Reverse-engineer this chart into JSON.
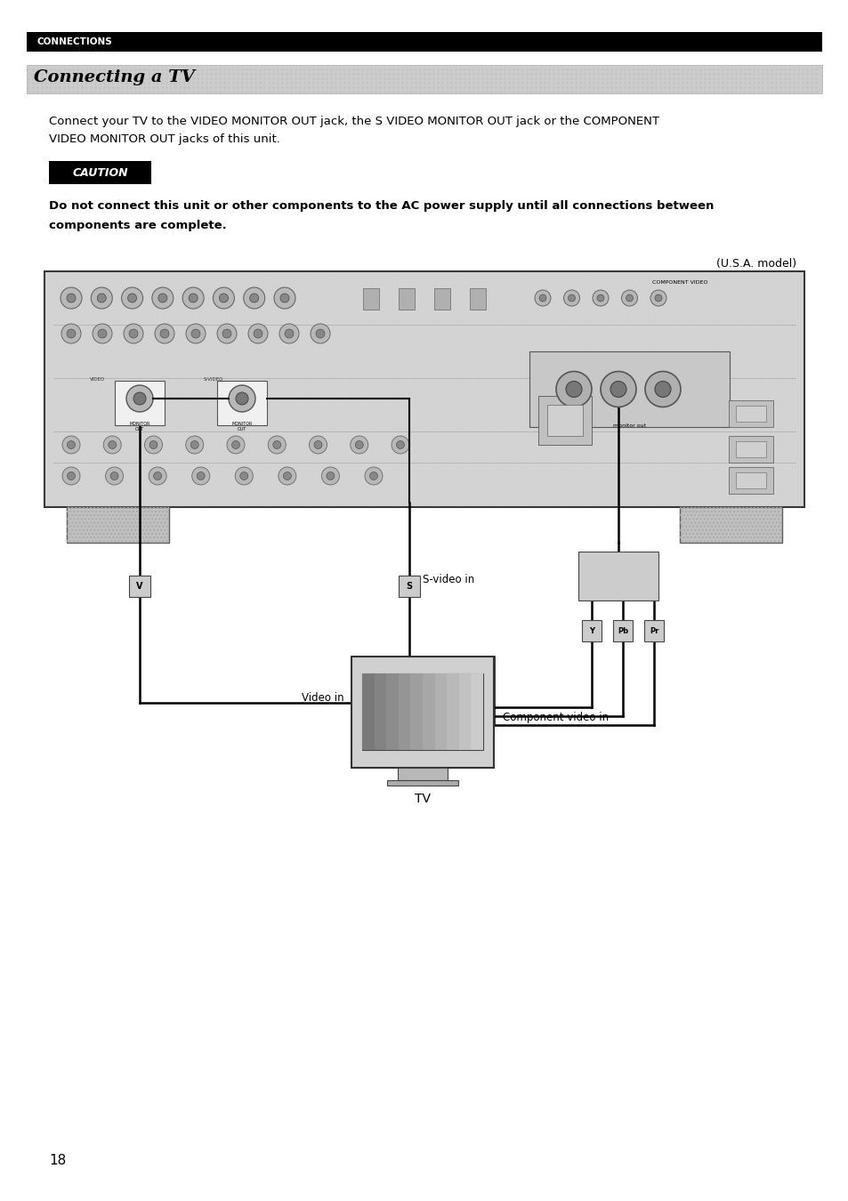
{
  "page_bg": "#ffffff",
  "header_bar_color": "#000000",
  "header_text": "CONNECTIONS",
  "header_text_color": "#ffffff",
  "title_text": "Connecting a TV",
  "body_text_line1": "Connect your TV to the VIDEO MONITOR OUT jack, the S VIDEO MONITOR OUT jack or the COMPONENT",
  "body_text_line2": "VIDEO MONITOR OUT jacks of this unit.",
  "caution_text": "CAUTION",
  "warning_line1": "Do not connect this unit or other components to the AC power supply until all connections between",
  "warning_line2": "components are complete.",
  "model_text": "(U.S.A. model)",
  "svideo_label": "S-video in",
  "video_label": "Video in",
  "component_label": "Component video in",
  "tv_label": "TV",
  "page_number": "18",
  "recv_bg": "#d8d8d8",
  "recv_border": "#333333",
  "conn_fill": "#b0b0b0",
  "conn_edge": "#555555",
  "conn_inner": "#666666",
  "white_box_fill": "#f0f0f0",
  "cable_color": "#000000",
  "foot_fill": "#c8c8c8",
  "tv_fill": "#cccccc",
  "screen_fill": "#a0a0a0",
  "plug_fill": "#cccccc"
}
